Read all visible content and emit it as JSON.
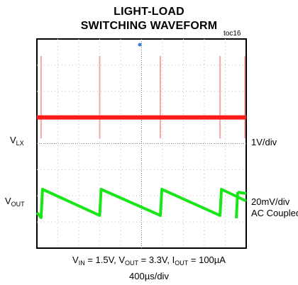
{
  "chart_data": {
    "type": "line",
    "title": "LIGHT-LOAD",
    "subtitle": "SWITCHING WAVEFORM",
    "figure_id": "toc16",
    "conditions": {
      "vin": {
        "symbol": "V",
        "sub": "IN",
        "text": "= 1.5V,"
      },
      "vout": {
        "symbol": "V",
        "sub": "OUT",
        "text": "= 3.3V,"
      },
      "iout": {
        "symbol": "I",
        "sub": "OUT",
        "text": "= 100µA"
      }
    },
    "timebase": "400µs/div",
    "grid": {
      "x_divisions": 10,
      "y_divisions": 8
    },
    "x_range_divisions": [
      0,
      10
    ],
    "series": [
      {
        "name": "VLX",
        "label_symbol": "V",
        "label_sub": "LX",
        "scale": "1V/div",
        "color": "#ff1a1a",
        "baseline_div": 5.0,
        "switching_pulses_div": [
          0.2,
          3.0,
          5.9,
          8.75,
          10.0
        ]
      },
      {
        "name": "VOUT",
        "label_symbol": "V",
        "label_sub": "OUT",
        "scale": "20mV/div",
        "coupling": "AC Coupled",
        "color": "#19e619",
        "ramp_top_div": 2.25,
        "ramp_bottom_div": 1.25,
        "recharge_times_div": [
          0.2,
          3.0,
          5.9,
          8.75
        ]
      }
    ]
  }
}
